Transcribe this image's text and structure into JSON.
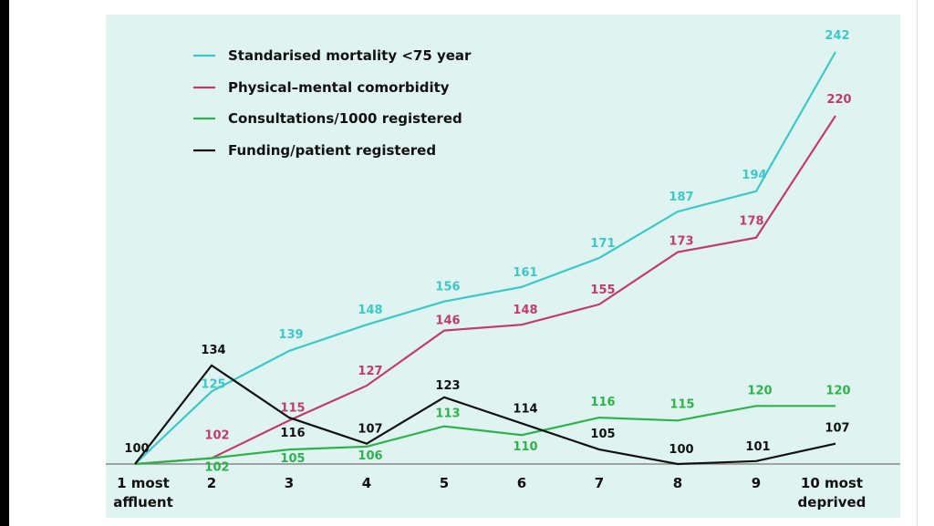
{
  "chart_data": {
    "type": "line",
    "categories": [
      [
        "1 most",
        "affluent"
      ],
      [
        "2"
      ],
      [
        "3"
      ],
      [
        "4"
      ],
      [
        "5"
      ],
      [
        "6"
      ],
      [
        "7"
      ],
      [
        "8"
      ],
      [
        "9"
      ],
      [
        "10 most",
        "deprived"
      ]
    ],
    "series": [
      {
        "name": "Standarised mortality <75 year",
        "color": "#3cc8c8",
        "values": [
          100,
          125,
          139,
          148,
          156,
          161,
          171,
          187,
          194,
          242
        ],
        "labels": [
          "",
          "125",
          "139",
          "148",
          "156",
          "161",
          "171",
          "187",
          "194",
          "242"
        ]
      },
      {
        "name": "Physical–mental comorbidity",
        "color": "#c23b6b",
        "values": [
          100,
          102,
          115,
          127,
          146,
          148,
          155,
          173,
          178,
          220
        ],
        "labels": [
          "",
          "102",
          "115",
          "127",
          "146",
          "148",
          "155",
          "173",
          "178",
          "220"
        ]
      },
      {
        "name": "Consultations/1000 registered",
        "color": "#2db34a",
        "values": [
          100,
          102,
          105,
          106,
          113,
          110,
          116,
          115,
          120,
          120
        ],
        "labels": [
          "",
          "102",
          "105",
          "106",
          "113",
          "110",
          "116",
          "115",
          "120",
          "120"
        ]
      },
      {
        "name": "Funding/patient registered",
        "color": "#111111",
        "values": [
          100,
          134,
          116,
          107,
          123,
          114,
          105,
          100,
          101,
          107
        ],
        "labels": [
          "100",
          "134",
          "116",
          "107",
          "123",
          "114",
          "105",
          "100",
          "101",
          "107"
        ]
      }
    ],
    "ylim": [
      100,
      242
    ],
    "legend_position": "top-left",
    "grid": false,
    "title": "",
    "xlabel": "",
    "ylabel": ""
  }
}
